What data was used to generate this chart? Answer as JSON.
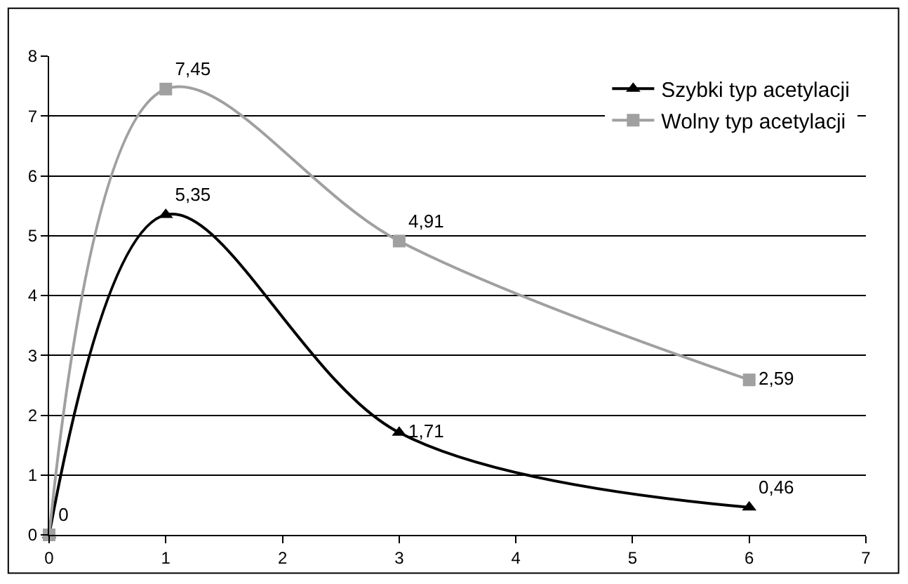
{
  "chart_data": {
    "type": "line",
    "x": [
      0,
      1,
      3,
      6
    ],
    "xlim": [
      0,
      7
    ],
    "xticks": [
      0,
      1,
      2,
      3,
      4,
      5,
      6,
      7
    ],
    "ylim": [
      0,
      8
    ],
    "yticks": [
      0,
      1,
      2,
      3,
      4,
      5,
      6,
      7,
      8
    ],
    "grid": "y",
    "legend": "top right",
    "series": [
      {
        "name": "Szybki typ acetylacji",
        "color": "#000000",
        "marker": "triangle",
        "values": [
          0,
          5.35,
          1.71,
          0.46
        ],
        "value_labels": [
          null,
          "5,35",
          "1,71",
          "0,46"
        ]
      },
      {
        "name": "Wolny typ acetylacji",
        "color": "#a0a0a0",
        "marker": "square",
        "values": [
          0,
          7.45,
          4.91,
          2.59
        ],
        "value_labels": [
          "0",
          "7,45",
          "4,91",
          "2,59"
        ]
      }
    ]
  }
}
